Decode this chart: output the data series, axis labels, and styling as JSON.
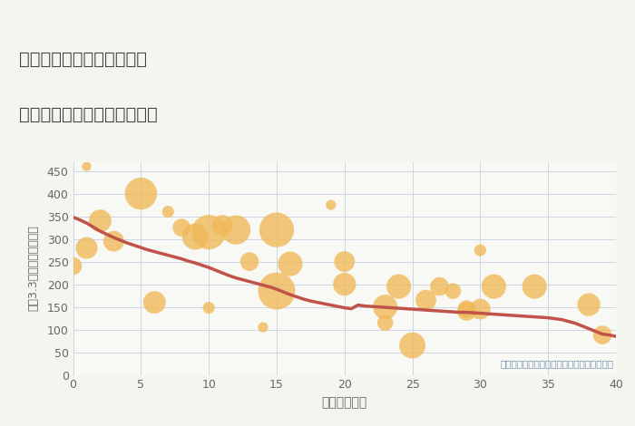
{
  "title_line1": "神奈川県横浜市中区桜木町",
  "title_line2": "築年数別中古マンション価格",
  "xlabel": "築年数（年）",
  "ylabel": "坪（3.3㎡）単価（万円）",
  "annotation": "円の大きさは、取引のあった物件面積を示す",
  "bg_color": "#f5f5f0",
  "plot_bg_color": "#f8f8f4",
  "scatter_color": "#f0b957",
  "scatter_alpha": 0.78,
  "line_color": "#c0524a",
  "grid_color": "#ccd5e5",
  "title_color": "#444444",
  "tick_color": "#666666",
  "annotation_color": "#7090b0",
  "xlim": [
    0,
    40
  ],
  "ylim": [
    0,
    470
  ],
  "xticks": [
    0,
    5,
    10,
    15,
    20,
    25,
    30,
    35,
    40
  ],
  "yticks": [
    0,
    50,
    100,
    150,
    200,
    250,
    300,
    350,
    400,
    450
  ],
  "scatter_x": [
    0,
    1,
    1,
    2,
    3,
    5,
    6,
    7,
    8,
    9,
    10,
    10,
    11,
    12,
    13,
    14,
    15,
    15,
    16,
    19,
    20,
    20,
    23,
    23,
    24,
    25,
    26,
    27,
    28,
    29,
    29,
    30,
    30,
    31,
    34,
    38,
    39
  ],
  "scatter_y": [
    240,
    280,
    460,
    340,
    295,
    400,
    160,
    360,
    325,
    305,
    315,
    148,
    330,
    320,
    250,
    105,
    185,
    320,
    245,
    375,
    250,
    200,
    150,
    115,
    195,
    65,
    165,
    195,
    185,
    145,
    140,
    275,
    145,
    195,
    195,
    155,
    88
  ],
  "scatter_size": [
    200,
    300,
    55,
    320,
    270,
    650,
    320,
    90,
    200,
    430,
    750,
    90,
    270,
    540,
    220,
    65,
    870,
    760,
    380,
    65,
    270,
    330,
    380,
    160,
    380,
    430,
    270,
    220,
    160,
    200,
    220,
    90,
    270,
    380,
    380,
    330,
    220
  ],
  "trend_x": [
    0,
    0.5,
    1,
    1.5,
    2,
    2.5,
    3,
    3.5,
    4,
    4.5,
    5,
    5.5,
    6,
    6.5,
    7,
    7.5,
    8,
    8.5,
    9,
    9.5,
    10,
    10.5,
    11,
    11.5,
    12,
    12.5,
    13,
    13.5,
    14,
    14.5,
    15,
    15.5,
    16,
    16.5,
    17,
    17.5,
    18,
    18.5,
    19,
    19.5,
    20,
    20.5,
    21,
    21.5,
    22,
    22.5,
    23,
    23.5,
    24,
    24.5,
    25,
    25.5,
    26,
    26.5,
    27,
    27.5,
    28,
    28.5,
    29,
    29.5,
    30,
    30.5,
    31,
    31.5,
    32,
    32.5,
    33,
    33.5,
    34,
    34.5,
    35,
    35.5,
    36,
    36.5,
    37,
    37.5,
    38,
    38.5,
    39,
    39.5,
    40
  ],
  "trend_y": [
    348,
    342,
    335,
    326,
    317,
    310,
    303,
    297,
    291,
    286,
    281,
    276,
    272,
    268,
    264,
    260,
    256,
    251,
    247,
    242,
    237,
    231,
    225,
    219,
    214,
    210,
    206,
    202,
    198,
    194,
    189,
    183,
    177,
    172,
    167,
    163,
    160,
    157,
    154,
    151,
    148,
    146,
    154,
    152,
    151,
    150,
    149,
    148,
    147,
    146,
    145,
    144,
    143,
    142,
    141,
    140,
    139,
    138,
    138,
    137,
    136,
    135,
    134,
    133,
    132,
    131,
    130,
    129,
    128,
    127,
    126,
    124,
    122,
    118,
    114,
    108,
    102,
    96,
    90,
    88,
    85
  ]
}
